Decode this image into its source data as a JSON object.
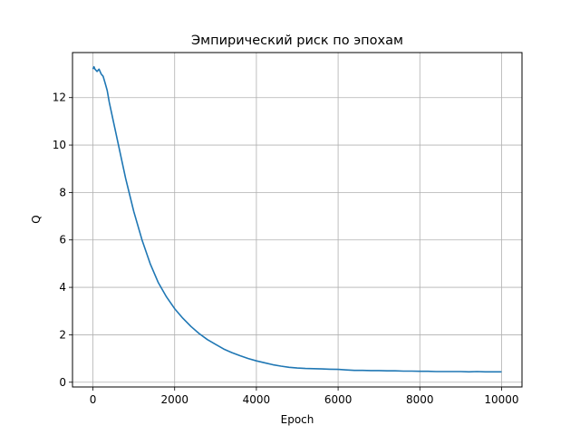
{
  "chart_data": {
    "type": "line",
    "title": "Эмпирический риск по эпохам",
    "xlabel": "Epoch",
    "ylabel": "Q",
    "xlim": [
      -500,
      10500
    ],
    "ylim": [
      -0.2,
      13.9
    ],
    "grid": true,
    "line_color": "#1f77b4",
    "xticks": [
      {
        "value": 0,
        "label": "0"
      },
      {
        "value": 2000,
        "label": "2000"
      },
      {
        "value": 4000,
        "label": "4000"
      },
      {
        "value": 6000,
        "label": "6000"
      },
      {
        "value": 8000,
        "label": "8000"
      },
      {
        "value": 10000,
        "label": "10000"
      }
    ],
    "yticks": [
      {
        "value": 0,
        "label": "0"
      },
      {
        "value": 2,
        "label": "2"
      },
      {
        "value": 4,
        "label": "4"
      },
      {
        "value": 6,
        "label": "6"
      },
      {
        "value": 8,
        "label": "8"
      },
      {
        "value": 10,
        "label": "10"
      },
      {
        "value": 12,
        "label": "12"
      }
    ],
    "series": [
      {
        "x": [
          0,
          25,
          50,
          100,
          150,
          200,
          250,
          300,
          350,
          400,
          500,
          600,
          700,
          800,
          900,
          1000,
          1200,
          1400,
          1600,
          1800,
          2000,
          2200,
          2400,
          2600,
          2800,
          3000,
          3200,
          3400,
          3600,
          3800,
          4000,
          4200,
          4400,
          4600,
          4800,
          5000,
          5200,
          5400,
          5600,
          5800,
          6000,
          6200,
          6400,
          6600,
          6800,
          7000,
          7200,
          7400,
          7600,
          7800,
          8000,
          8200,
          8400,
          8600,
          8800,
          9000,
          9200,
          9400,
          9600,
          9800,
          10000
        ],
        "y": [
          13.2,
          13.3,
          13.2,
          13.1,
          13.2,
          13.0,
          12.9,
          12.6,
          12.3,
          11.8,
          11.0,
          10.2,
          9.4,
          8.6,
          7.9,
          7.2,
          6.0,
          5.0,
          4.2,
          3.6,
          3.1,
          2.7,
          2.35,
          2.05,
          1.8,
          1.6,
          1.4,
          1.25,
          1.12,
          1.0,
          0.9,
          0.82,
          0.74,
          0.68,
          0.63,
          0.6,
          0.58,
          0.57,
          0.56,
          0.55,
          0.54,
          0.52,
          0.5,
          0.5,
          0.49,
          0.49,
          0.48,
          0.48,
          0.47,
          0.47,
          0.46,
          0.46,
          0.45,
          0.45,
          0.45,
          0.45,
          0.44,
          0.45,
          0.44,
          0.44,
          0.44
        ]
      }
    ]
  }
}
